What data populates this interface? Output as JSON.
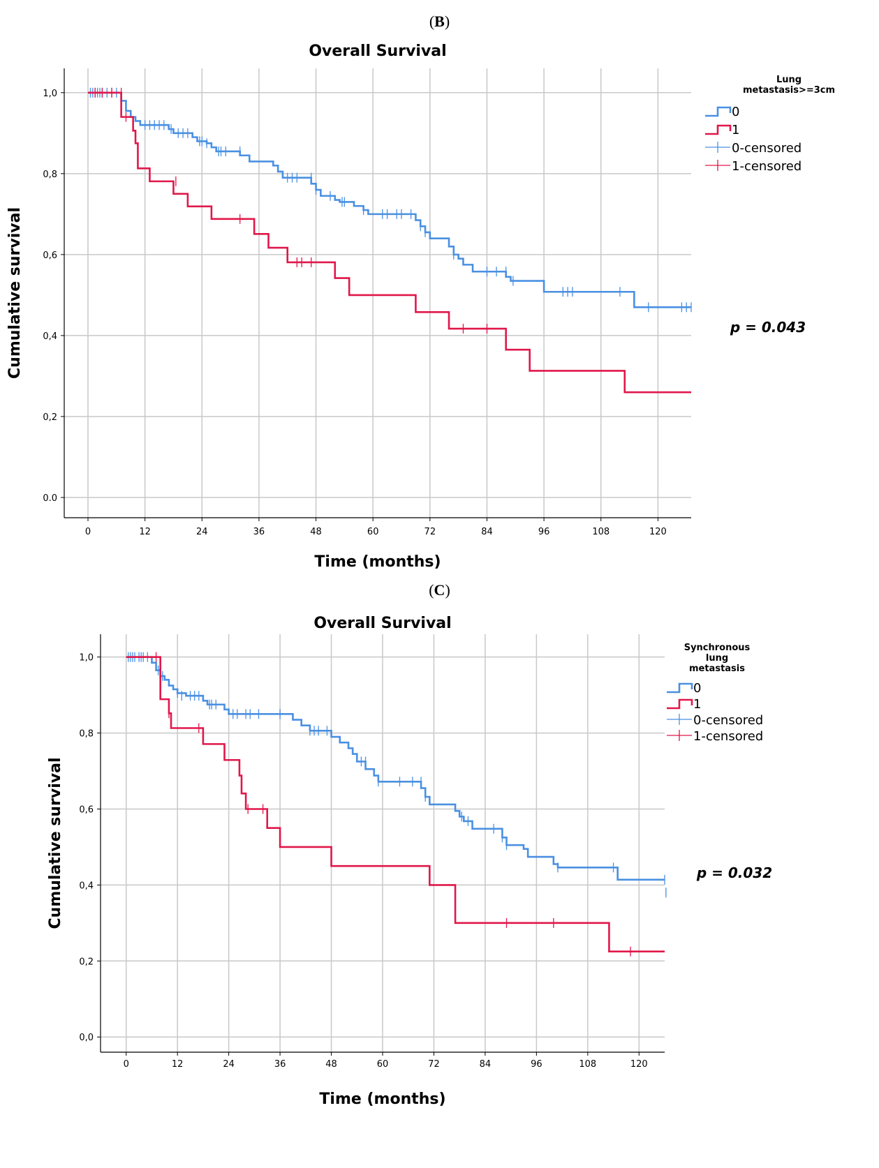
{
  "panel_b_letter": "B",
  "panel_c_letter": "C",
  "chart_data": [
    {
      "type": "line",
      "subtype": "kaplan-meier",
      "panel": "B",
      "title": "Overall Survival",
      "xlabel": "Time (months)",
      "ylabel": "Cumulative survival",
      "xlim": [
        -5,
        127
      ],
      "ylim": [
        -0.05,
        1.06
      ],
      "xticks": [
        0,
        12,
        24,
        36,
        48,
        60,
        72,
        84,
        96,
        108,
        120
      ],
      "xtick_labels": [
        "0",
        "12",
        "24",
        "36",
        "48",
        "60",
        "72",
        "84",
        "96",
        "108",
        "120"
      ],
      "yticks": [
        0.0,
        0.2,
        0.4,
        0.6,
        0.8,
        1.0
      ],
      "ytick_labels": [
        "0.0",
        "0,2",
        "0,4",
        "0,6",
        "0,8",
        "1,0"
      ],
      "legend_title": "Lung metastasis>=3cm",
      "legend_title_lines": [
        "Lung",
        "metastasis>=3cm"
      ],
      "legend": [
        "0",
        "1",
        "0-censored",
        "1-censored"
      ],
      "annotation": "p = 0.043",
      "series": [
        {
          "name": "0",
          "color": "#4a90e2",
          "steps": [
            [
              0,
              1.0
            ],
            [
              7,
              0.98
            ],
            [
              8,
              0.955
            ],
            [
              9,
              0.94
            ],
            [
              10,
              0.93
            ],
            [
              11,
              0.92
            ],
            [
              17,
              0.91
            ],
            [
              18,
              0.9
            ],
            [
              22,
              0.89
            ],
            [
              23,
              0.88
            ],
            [
              25,
              0.875
            ],
            [
              26,
              0.865
            ],
            [
              27,
              0.855
            ],
            [
              32,
              0.845
            ],
            [
              34,
              0.83
            ],
            [
              39,
              0.82
            ],
            [
              40,
              0.805
            ],
            [
              41,
              0.79
            ],
            [
              47,
              0.775
            ],
            [
              48,
              0.76
            ],
            [
              49,
              0.745
            ],
            [
              52,
              0.735
            ],
            [
              53,
              0.73
            ],
            [
              56,
              0.72
            ],
            [
              58,
              0.71
            ],
            [
              59,
              0.7
            ],
            [
              69,
              0.685
            ],
            [
              70,
              0.67
            ],
            [
              71,
              0.655
            ],
            [
              72,
              0.64
            ],
            [
              76,
              0.62
            ],
            [
              77,
              0.6
            ],
            [
              78,
              0.59
            ],
            [
              79,
              0.575
            ],
            [
              81,
              0.558
            ],
            [
              88,
              0.545
            ],
            [
              89,
              0.535
            ],
            [
              96,
              0.508
            ],
            [
              115,
              0.47
            ],
            [
              127,
              0.47
            ]
          ],
          "censored": [
            [
              0.5,
              1.0
            ],
            [
              1,
              1.0
            ],
            [
              1.5,
              1.0
            ],
            [
              2,
              1.0
            ],
            [
              2.5,
              1.0
            ],
            [
              3,
              1.0
            ],
            [
              4,
              1.0
            ],
            [
              5,
              1.0
            ],
            [
              6,
              1.0
            ],
            [
              12,
              0.92
            ],
            [
              13,
              0.92
            ],
            [
              14,
              0.92
            ],
            [
              15,
              0.92
            ],
            [
              16,
              0.92
            ],
            [
              17.5,
              0.91
            ],
            [
              19,
              0.9
            ],
            [
              20,
              0.9
            ],
            [
              21,
              0.9
            ],
            [
              23.5,
              0.88
            ],
            [
              24,
              0.88
            ],
            [
              25,
              0.875
            ],
            [
              27.5,
              0.855
            ],
            [
              28,
              0.855
            ],
            [
              29,
              0.855
            ],
            [
              32,
              0.855
            ],
            [
              42,
              0.79
            ],
            [
              43,
              0.79
            ],
            [
              44,
              0.79
            ],
            [
              47,
              0.79
            ],
            [
              48,
              0.76
            ],
            [
              51,
              0.745
            ],
            [
              53.5,
              0.73
            ],
            [
              54,
              0.73
            ],
            [
              58,
              0.71
            ],
            [
              62,
              0.7
            ],
            [
              63,
              0.7
            ],
            [
              65,
              0.7
            ],
            [
              66,
              0.7
            ],
            [
              68,
              0.7
            ],
            [
              70,
              0.67
            ],
            [
              71,
              0.655
            ],
            [
              77,
              0.6
            ],
            [
              84,
              0.558
            ],
            [
              86,
              0.558
            ],
            [
              88,
              0.558
            ],
            [
              89.5,
              0.535
            ],
            [
              100,
              0.508
            ],
            [
              101,
              0.508
            ],
            [
              102,
              0.508
            ],
            [
              112,
              0.508
            ],
            [
              118,
              0.47
            ],
            [
              125,
              0.47
            ],
            [
              126,
              0.47
            ],
            [
              127,
              0.47
            ]
          ]
        },
        {
          "name": "1",
          "color": "#e0174a",
          "steps": [
            [
              0,
              1.0
            ],
            [
              7,
              0.94
            ],
            [
              9.5,
              0.906
            ],
            [
              10,
              0.875
            ],
            [
              10.5,
              0.813
            ],
            [
              13,
              0.781
            ],
            [
              18,
              0.75
            ],
            [
              21,
              0.719
            ],
            [
              26,
              0.688
            ],
            [
              35,
              0.651
            ],
            [
              38,
              0.617
            ],
            [
              42,
              0.581
            ],
            [
              52,
              0.542
            ],
            [
              55,
              0.5
            ],
            [
              69,
              0.458
            ],
            [
              76,
              0.417
            ],
            [
              88,
              0.365
            ],
            [
              93,
              0.313
            ],
            [
              113,
              0.26
            ],
            [
              127,
              0.26
            ]
          ],
          "censored": [
            [
              1.5,
              1.0
            ],
            [
              3,
              1.0
            ],
            [
              5,
              1.0
            ],
            [
              7,
              1.0
            ],
            [
              8,
              0.94
            ],
            [
              18.5,
              0.781
            ],
            [
              32,
              0.688
            ],
            [
              44,
              0.581
            ],
            [
              45,
              0.581
            ],
            [
              47,
              0.581
            ],
            [
              79,
              0.417
            ],
            [
              84,
              0.417
            ]
          ]
        }
      ]
    },
    {
      "type": "line",
      "subtype": "kaplan-meier",
      "panel": "C",
      "title": "Overall Survival",
      "xlabel": "Time (months)",
      "ylabel": "Cumulative survival",
      "xlim": [
        -6,
        126
      ],
      "ylim": [
        -0.04,
        1.06
      ],
      "xticks": [
        0,
        12,
        24,
        36,
        48,
        60,
        72,
        84,
        96,
        108,
        120
      ],
      "xtick_labels": [
        "0",
        "12",
        "24",
        "36",
        "48",
        "60",
        "72",
        "84",
        "96",
        "108",
        "120"
      ],
      "yticks": [
        0.0,
        0.2,
        0.4,
        0.6,
        0.8,
        1.0
      ],
      "ytick_labels": [
        "0,0",
        "0,2",
        "0,4",
        "0,6",
        "0,8",
        "1,0"
      ],
      "legend_title": "Synchronous lung metastasis",
      "legend_title_lines": [
        "Synchronous",
        "lung",
        "metastasis"
      ],
      "legend": [
        "0",
        "1",
        "0-censored",
        "1-censored"
      ],
      "annotation": "p = 0.032",
      "series": [
        {
          "name": "0",
          "color": "#4a90e2",
          "steps": [
            [
              0,
              1.0
            ],
            [
              6,
              0.985
            ],
            [
              7,
              0.965
            ],
            [
              8,
              0.95
            ],
            [
              9,
              0.94
            ],
            [
              10,
              0.925
            ],
            [
              11,
              0.915
            ],
            [
              12,
              0.905
            ],
            [
              14,
              0.898
            ],
            [
              18,
              0.885
            ],
            [
              19,
              0.875
            ],
            [
              23,
              0.862
            ],
            [
              24,
              0.85
            ],
            [
              39,
              0.835
            ],
            [
              41,
              0.82
            ],
            [
              43,
              0.806
            ],
            [
              48,
              0.79
            ],
            [
              50,
              0.775
            ],
            [
              52,
              0.76
            ],
            [
              53,
              0.745
            ],
            [
              54,
              0.725
            ],
            [
              56,
              0.705
            ],
            [
              58,
              0.688
            ],
            [
              59,
              0.672
            ],
            [
              69,
              0.655
            ],
            [
              70,
              0.632
            ],
            [
              71,
              0.612
            ],
            [
              77,
              0.595
            ],
            [
              78,
              0.58
            ],
            [
              79,
              0.568
            ],
            [
              81,
              0.548
            ],
            [
              88,
              0.525
            ],
            [
              89,
              0.505
            ],
            [
              93,
              0.495
            ],
            [
              94,
              0.474
            ],
            [
              100,
              0.455
            ],
            [
              101,
              0.446
            ],
            [
              115,
              0.414
            ],
            [
              126,
              0.414
            ]
          ],
          "censored": [
            [
              0.5,
              1.0
            ],
            [
              1,
              1.0
            ],
            [
              1.5,
              1.0
            ],
            [
              2,
              1.0
            ],
            [
              3,
              1.0
            ],
            [
              3.5,
              1.0
            ],
            [
              4,
              1.0
            ],
            [
              5,
              1.0
            ],
            [
              7.5,
              0.965
            ],
            [
              8.5,
              0.95
            ],
            [
              12,
              0.905
            ],
            [
              13,
              0.898
            ],
            [
              15,
              0.898
            ],
            [
              16,
              0.898
            ],
            [
              17,
              0.898
            ],
            [
              19.5,
              0.875
            ],
            [
              20,
              0.875
            ],
            [
              21,
              0.875
            ],
            [
              25,
              0.85
            ],
            [
              26,
              0.85
            ],
            [
              28,
              0.85
            ],
            [
              29,
              0.85
            ],
            [
              31,
              0.85
            ],
            [
              36,
              0.85
            ],
            [
              43,
              0.806
            ],
            [
              44,
              0.806
            ],
            [
              45,
              0.806
            ],
            [
              47,
              0.806
            ],
            [
              55,
              0.725
            ],
            [
              56,
              0.725
            ],
            [
              59,
              0.672
            ],
            [
              64,
              0.672
            ],
            [
              67,
              0.672
            ],
            [
              69,
              0.672
            ],
            [
              70,
              0.632
            ],
            [
              78.5,
              0.58
            ],
            [
              80,
              0.568
            ],
            [
              86,
              0.548
            ],
            [
              88,
              0.525
            ],
            [
              89,
              0.505
            ],
            [
              101,
              0.446
            ],
            [
              114,
              0.446
            ],
            [
              126,
              0.414
            ],
            [
              126.3,
              0.38
            ]
          ]
        },
        {
          "name": "1",
          "color": "#e0174a",
          "steps": [
            [
              0,
              1.0
            ],
            [
              8,
              0.889
            ],
            [
              10,
              0.852
            ],
            [
              10.5,
              0.813
            ],
            [
              18,
              0.771
            ],
            [
              23,
              0.729
            ],
            [
              26.5,
              0.688
            ],
            [
              27,
              0.641
            ],
            [
              28,
              0.6
            ],
            [
              33,
              0.55
            ],
            [
              36,
              0.5
            ],
            [
              48,
              0.45
            ],
            [
              71,
              0.4
            ],
            [
              77,
              0.3
            ],
            [
              113,
              0.225
            ],
            [
              126,
              0.225
            ]
          ],
          "censored": [
            [
              7,
              1.0
            ],
            [
              10,
              0.852
            ],
            [
              17,
              0.813
            ],
            [
              28.5,
              0.6
            ],
            [
              32,
              0.6
            ],
            [
              89,
              0.3
            ],
            [
              100,
              0.3
            ],
            [
              118,
              0.225
            ]
          ]
        }
      ]
    }
  ]
}
